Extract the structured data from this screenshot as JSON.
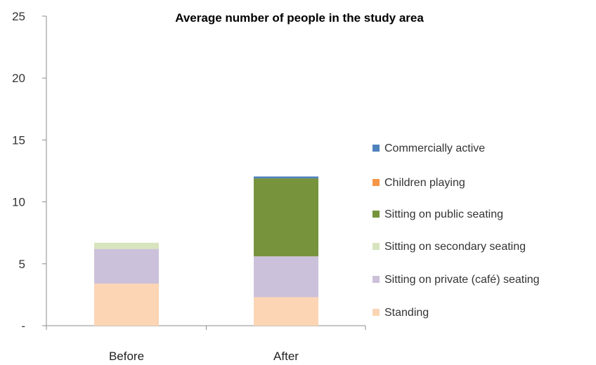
{
  "chart_data": {
    "type": "bar",
    "stacked": true,
    "title": "Average number of people in the study area",
    "xlabel": "",
    "ylabel": "",
    "categories": [
      "Before",
      "After"
    ],
    "ylim": [
      0,
      25
    ],
    "yticks": [
      {
        "value": 0,
        "label": "-"
      },
      {
        "value": 5,
        "label": "5"
      },
      {
        "value": 10,
        "label": "10"
      },
      {
        "value": 15,
        "label": "15"
      },
      {
        "value": 20,
        "label": "20"
      },
      {
        "value": 25,
        "label": "25"
      }
    ],
    "grid": false,
    "legend_position": "right",
    "series": [
      {
        "name": "Standing",
        "color": "#fcd5b5",
        "values": [
          3.4,
          2.3
        ]
      },
      {
        "name": "Sitting on private (café) seating",
        "color": "#ccc1da",
        "values": [
          2.8,
          3.3
        ]
      },
      {
        "name": "Sitting on secondary seating",
        "color": "#d7e4bd",
        "values": [
          0.5,
          0.0
        ]
      },
      {
        "name": "Sitting on public seating",
        "color": "#77933c",
        "values": [
          0.0,
          6.3
        ]
      },
      {
        "name": "Children playing",
        "color": "#f79646",
        "values": [
          0.0,
          0.0
        ]
      },
      {
        "name": "Commercially active",
        "color": "#4f81bd",
        "values": [
          0.0,
          0.15
        ]
      }
    ]
  }
}
